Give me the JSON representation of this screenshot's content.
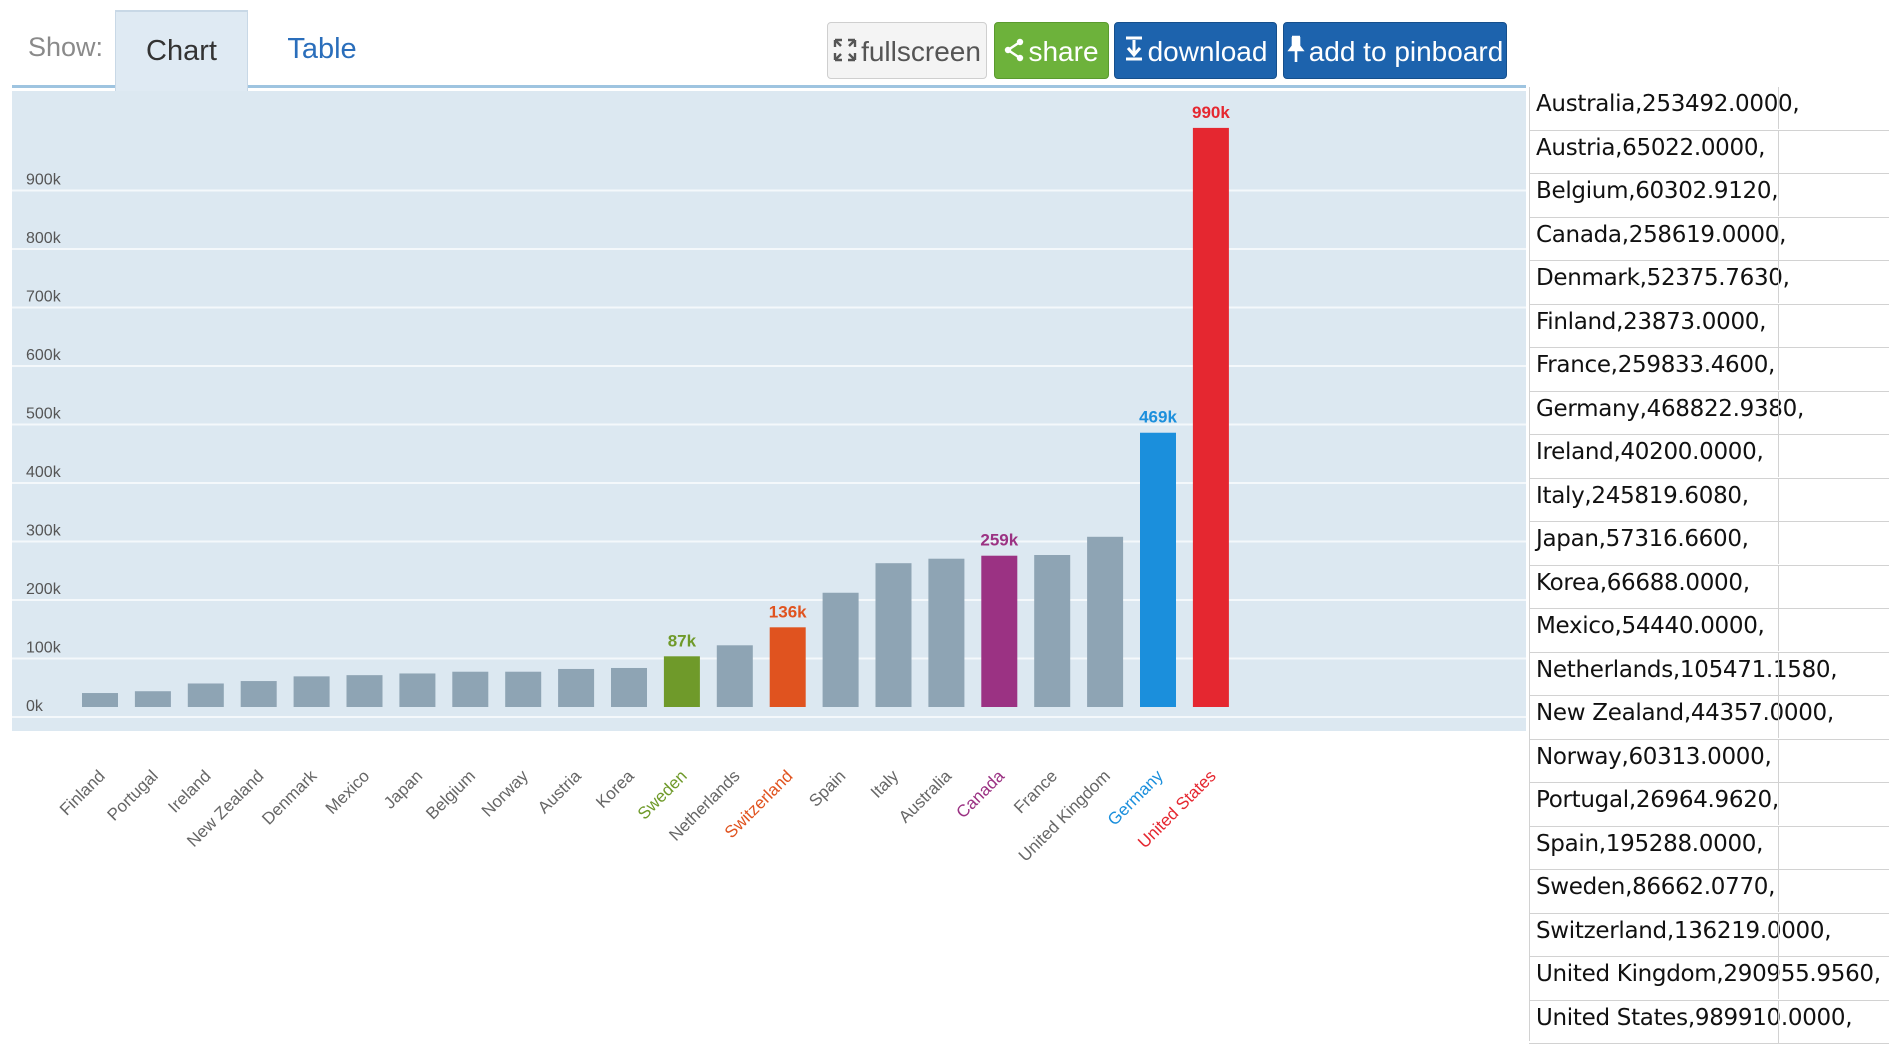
{
  "tabs": {
    "show_label": "Show:",
    "chart_label": "Chart",
    "table_label": "Table"
  },
  "toolbar": {
    "fullscreen_label": "fullscreen",
    "share_label": "share",
    "download_label": "download",
    "pinboard_label": "add to pinboard"
  },
  "colors": {
    "default_bar": "#8ea4b4",
    "plot_background": "#dce8f1",
    "highlight": {
      "Sweden": "#6f9a2a",
      "Switzerland": "#e0531f",
      "Canada": "#9b3283",
      "Germany": "#1b8fdc",
      "United States": "#e52730"
    }
  },
  "chart_data": {
    "type": "bar",
    "categories": [
      "Finland",
      "Portugal",
      "Ireland",
      "New Zealand",
      "Denmark",
      "Mexico",
      "Japan",
      "Belgium",
      "Norway",
      "Austria",
      "Korea",
      "Sweden",
      "Netherlands",
      "Switzerland",
      "Spain",
      "Italy",
      "Australia",
      "Canada",
      "France",
      "United Kingdom",
      "Germany",
      "United States"
    ],
    "values": [
      23873,
      26965,
      40200,
      44357,
      52376,
      54440,
      57317,
      60303,
      60313,
      65022,
      66688,
      86662,
      105471,
      136219,
      195288,
      245820,
      253492,
      258619,
      259833,
      290956,
      468823,
      989910
    ],
    "data_labels": {
      "Sweden": "87k",
      "Switzerland": "136k",
      "Canada": "259k",
      "Germany": "469k",
      "United States": "990k"
    },
    "yticks": [
      {
        "value": 0,
        "label": "0k"
      },
      {
        "value": 100000,
        "label": "100k"
      },
      {
        "value": 200000,
        "label": "200k"
      },
      {
        "value": 300000,
        "label": "300k"
      },
      {
        "value": 400000,
        "label": "400k"
      },
      {
        "value": 500000,
        "label": "500k"
      },
      {
        "value": 600000,
        "label": "600k"
      },
      {
        "value": 700000,
        "label": "700k"
      },
      {
        "value": 800000,
        "label": "800k"
      },
      {
        "value": 900000,
        "label": "900k"
      }
    ],
    "ylim": [
      0,
      1000000
    ],
    "grid": true,
    "title": "",
    "xlabel": "",
    "ylabel": ""
  },
  "data_list": [
    "Australia,253492.0000,",
    "Austria,65022.0000,",
    "Belgium,60302.9120,",
    "Canada,258619.0000,",
    "Denmark,52375.7630,",
    "Finland,23873.0000,",
    "France,259833.4600,",
    "Germany,468822.9380,",
    "Ireland,40200.0000,",
    "Italy,245819.6080,",
    "Japan,57316.6600,",
    "Korea,66688.0000,",
    "Mexico,54440.0000,",
    "Netherlands,105471.1580,",
    "New Zealand,44357.0000,",
    "Norway,60313.0000,",
    "Portugal,26964.9620,",
    "Spain,195288.0000,",
    "Sweden,86662.0770,",
    "Switzerland,136219.0000,",
    "United Kingdom,290955.9560,",
    "United States,989910.0000,"
  ]
}
